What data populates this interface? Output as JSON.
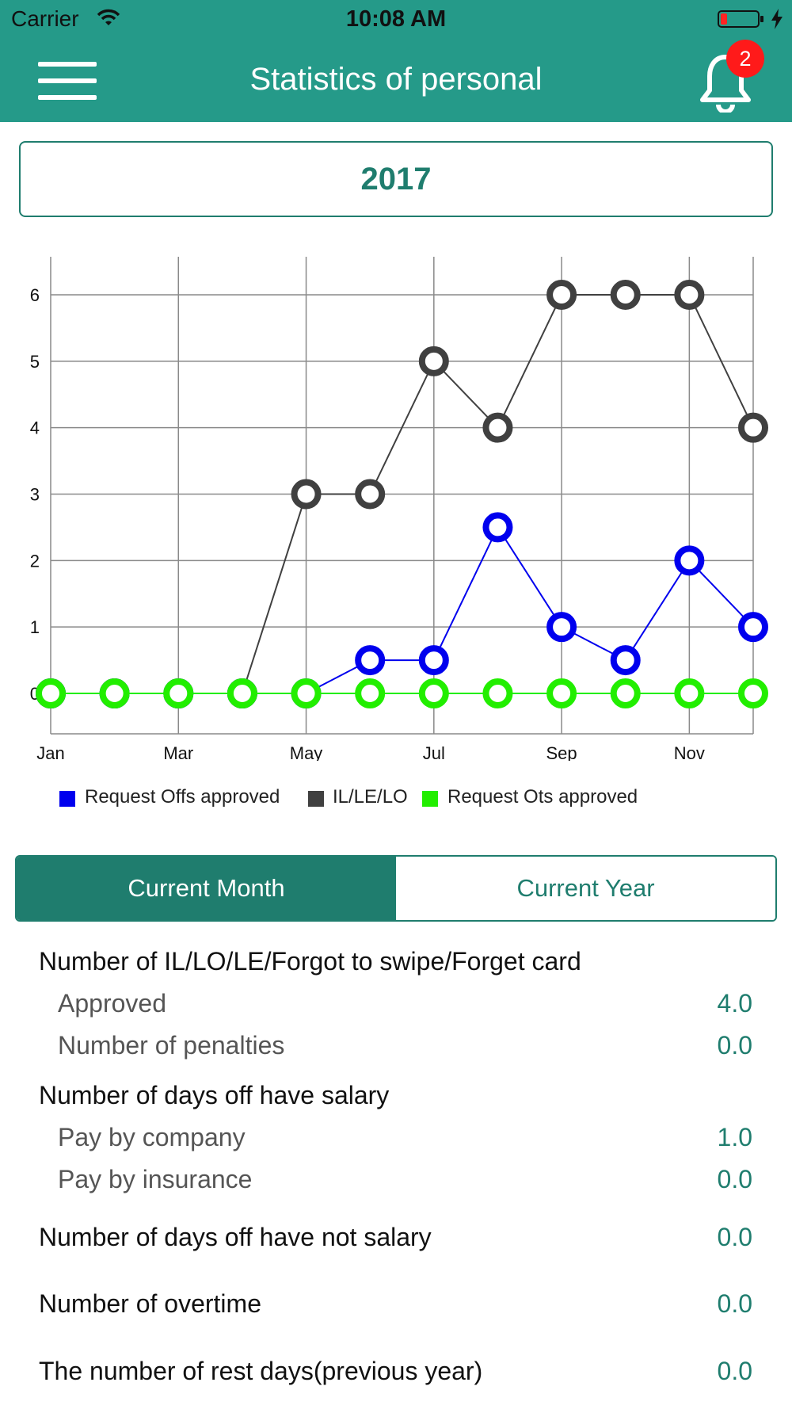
{
  "status_bar": {
    "carrier": "Carrier",
    "time": "10:08 AM"
  },
  "header": {
    "title": "Statistics of personal",
    "notification_count": "2",
    "background": "#259a89"
  },
  "year_selector": {
    "value": "2017"
  },
  "chart_data": {
    "type": "line",
    "categories": [
      "Jan",
      "Feb",
      "Mar",
      "Apr",
      "May",
      "Jun",
      "Jul",
      "Aug",
      "Sep",
      "Oct",
      "Nov",
      "Dec"
    ],
    "x_tick_labels": [
      "Jan",
      "Mar",
      "May",
      "Jul",
      "Sep",
      "Nov"
    ],
    "y_ticks": [
      0,
      1,
      2,
      3,
      4,
      5,
      6
    ],
    "ylim": [
      0,
      6
    ],
    "grid": true,
    "legend_position": "bottom",
    "series": [
      {
        "name": "IL/LE/LO",
        "color": "#404040",
        "values": [
          0,
          0,
          0,
          0,
          3,
          3,
          5,
          4,
          6,
          6,
          6,
          4
        ]
      },
      {
        "name": "Request Offs approved",
        "color": "#0000ee",
        "values": [
          0,
          0,
          0,
          0,
          0,
          0.5,
          0.5,
          2.5,
          1,
          0.5,
          2,
          1
        ]
      },
      {
        "name": "Request Ots approved",
        "color": "#22ee00",
        "values": [
          0,
          0,
          0,
          0,
          0,
          0,
          0,
          0,
          0,
          0,
          0,
          0
        ]
      }
    ]
  },
  "legend": [
    {
      "label": "Request Offs approved",
      "color": "#0000ee"
    },
    {
      "label": "IL/LE/LO",
      "color": "#404040"
    },
    {
      "label": "Request Ots approved",
      "color": "#22ee00"
    }
  ],
  "tabs": {
    "current_month": "Current Month",
    "current_year": "Current Year",
    "accent": "#1f7d6e"
  },
  "stats": {
    "il_section": "Number of IL/LO/LE/Forgot to swipe/Forget card",
    "approved_label": "Approved",
    "approved_value": "4.0",
    "penalties_label": "Number of penalties",
    "penalties_value": "0.0",
    "salary_section": "Number of days off have salary",
    "company_label": "Pay by company",
    "company_value": "1.0",
    "insurance_label": "Pay by insurance",
    "insurance_value": "0.0",
    "no_salary_label": "Number of days off have not salary",
    "no_salary_value": "0.0",
    "overtime_label": "Number of overtime",
    "overtime_value": "0.0",
    "rest_days_label": "The number of rest days(previous year)",
    "rest_days_value": "0.0"
  }
}
